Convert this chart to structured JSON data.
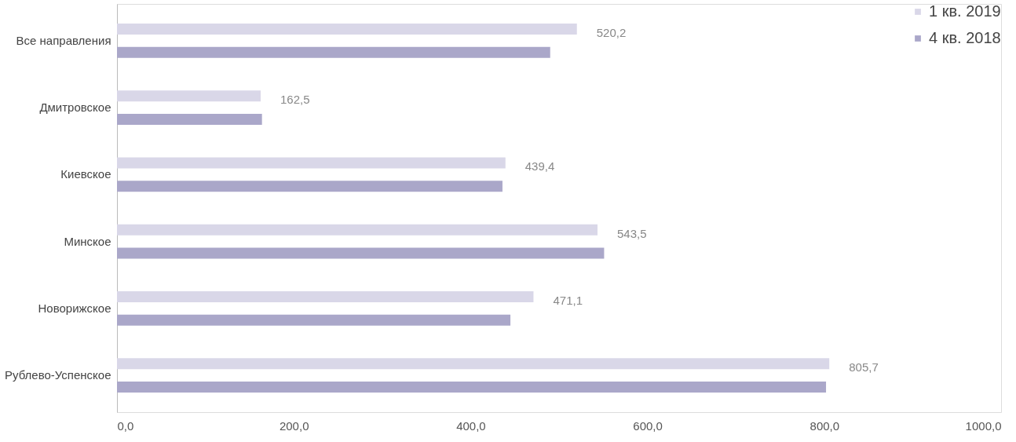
{
  "chart_data": {
    "type": "bar",
    "orientation": "horizontal",
    "categories": [
      "Все направления",
      "Дмитровское",
      "Киевское",
      "Минское",
      "Новорижское",
      "Рублево-Успенское"
    ],
    "series": [
      {
        "name": "1 кв. 2019",
        "color": "#d9d7e8",
        "values": [
          520.2,
          162.5,
          439.4,
          543.5,
          471.1,
          805.7
        ],
        "value_labels": [
          "520,2",
          "162,5",
          "439,4",
          "543,5",
          "471,1",
          "805,7"
        ]
      },
      {
        "name": "4 кв. 2018",
        "color": "#aaa7c9",
        "values": [
          490,
          164,
          436,
          551,
          445,
          802
        ]
      }
    ],
    "xlim": [
      0,
      1000
    ],
    "xticks": [
      {
        "value": 0,
        "label": "0,0"
      },
      {
        "value": 200,
        "label": "200,0"
      },
      {
        "value": 400,
        "label": "400,0"
      },
      {
        "value": 600,
        "label": "600,0"
      },
      {
        "value": 800,
        "label": "800,0"
      },
      {
        "value": 1000,
        "label": "1000,0"
      }
    ],
    "grid": false,
    "legend": "top right"
  }
}
